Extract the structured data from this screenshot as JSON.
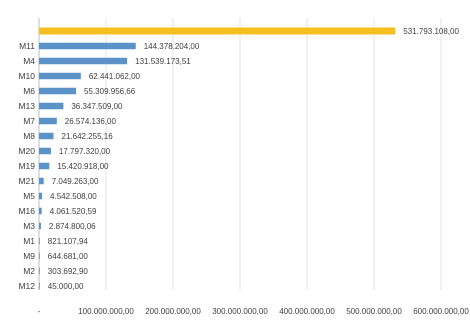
{
  "chart_data": {
    "type": "bar",
    "orientation": "horizontal",
    "title": "",
    "xlabel": "",
    "ylabel": "",
    "categories": [
      "",
      "M11",
      "M4",
      "M10",
      "M6",
      "M13",
      "M7",
      "M8",
      "M20",
      "M19",
      "M21",
      "M5",
      "M16",
      "M3",
      "M1",
      "M9",
      "M2",
      "M12"
    ],
    "values": [
      531793108.0,
      144378204.0,
      131539173.51,
      62441062.0,
      55309956.66,
      36347509.0,
      26574136.0,
      21642255.16,
      17797320.0,
      15420918.0,
      7049263.0,
      4542508.0,
      4061520.59,
      2874800.06,
      821107.94,
      644681.0,
      303692.9,
      45000.0
    ],
    "value_labels": [
      "531.793.108,00",
      "144.378.204,00",
      "131.539.173,51",
      "62.441.062,00",
      "55.309.956,66",
      "36.347.509,00",
      "26.574.136,00",
      "21.642.255,16",
      "17.797.320,00",
      "15.420.918,00",
      "7.049.263,00",
      "4.542.508,00",
      "4.061.520,59",
      "2.874.800,06",
      "821.107,94",
      "644.681,00",
      "303.692,90",
      "45.000,00"
    ],
    "highlight_colors": [
      "#f5bf1f",
      "#5b93c9",
      "#5b93c9",
      "#5b93c9",
      "#5b93c9",
      "#5b93c9",
      "#5b93c9",
      "#5b93c9",
      "#5b93c9",
      "#5b93c9",
      "#5b93c9",
      "#5b93c9",
      "#5b93c9",
      "#5b93c9",
      "#5b93c9",
      "#5b93c9",
      "#5b93c9",
      "#5b93c9"
    ],
    "xlim": [
      0,
      600000000
    ],
    "xticks": [
      0,
      100000000,
      200000000,
      300000000,
      400000000,
      500000000,
      600000000
    ],
    "xtick_labels": [
      "-",
      "100.000.000,00",
      "200.000.000,00",
      "300.000.000,00",
      "400.000.000,00",
      "500.000.000,00",
      "600.000.000,00"
    ],
    "grid": true,
    "legend": "none"
  }
}
